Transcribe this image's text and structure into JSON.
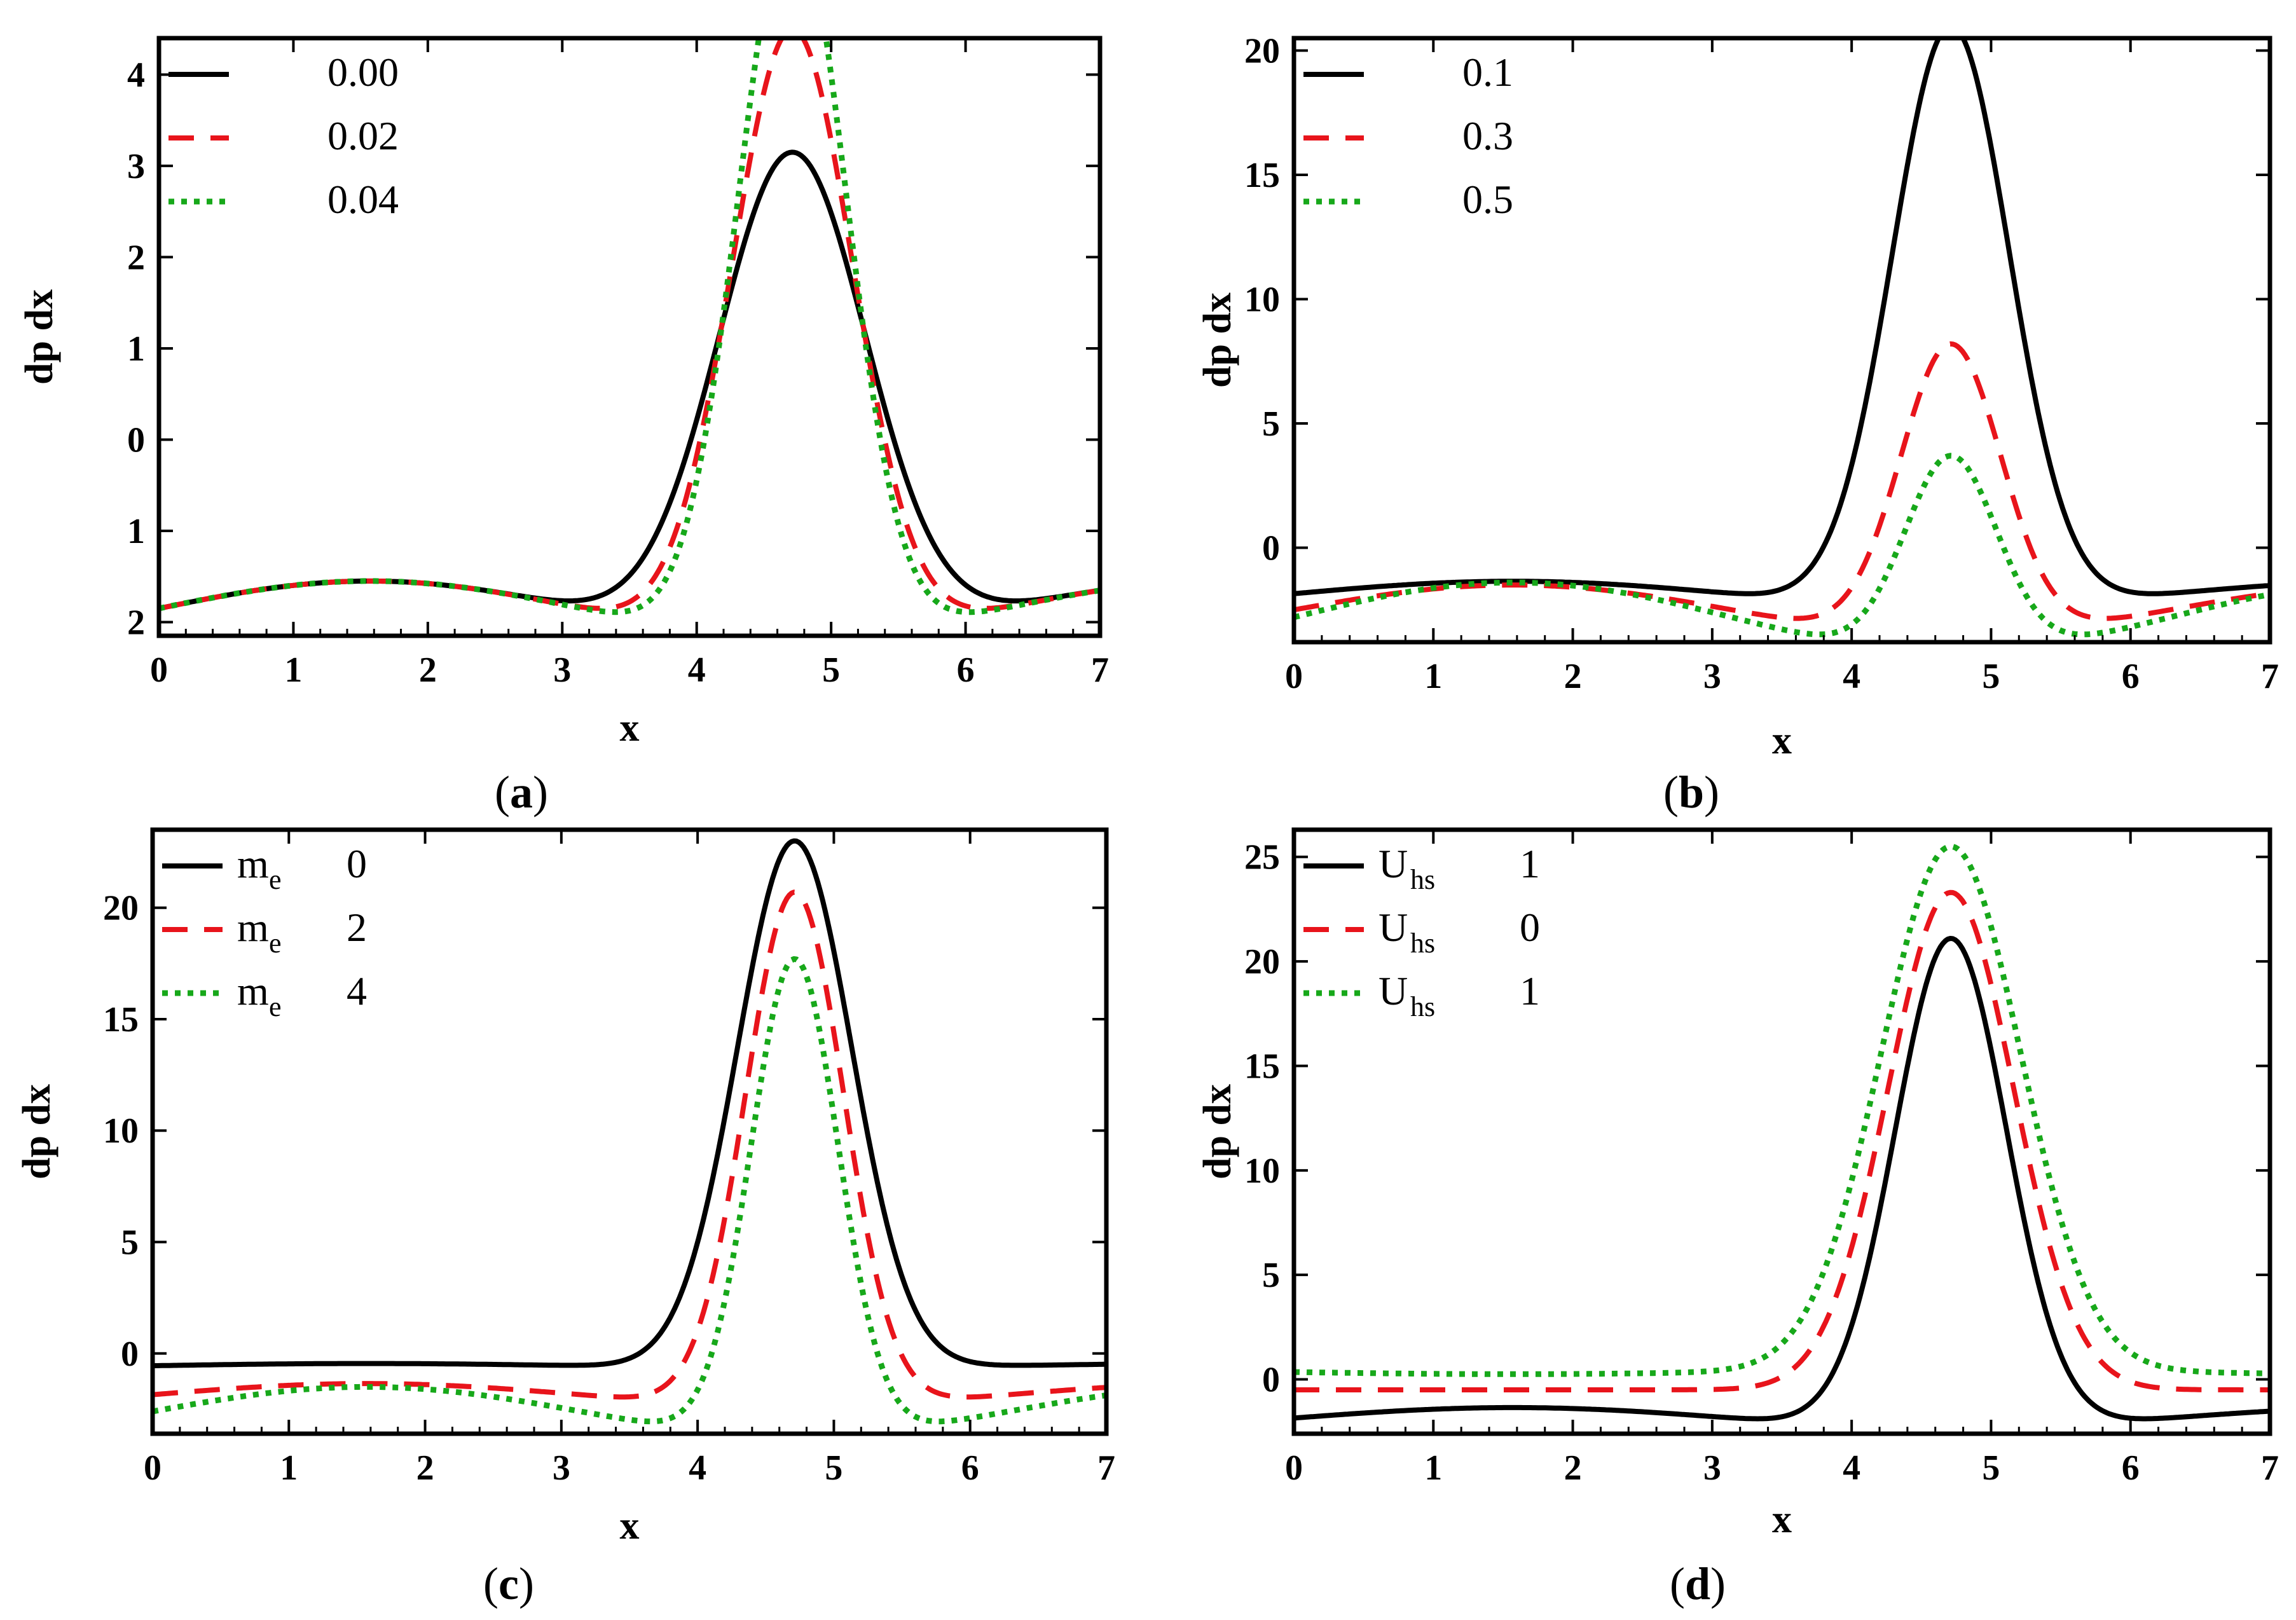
{
  "figure": {
    "panels": [
      {
        "id": "a",
        "caption_letter": "a"
      },
      {
        "id": "b",
        "caption_letter": "b"
      },
      {
        "id": "c",
        "caption_letter": "c"
      },
      {
        "id": "d",
        "caption_letter": "d"
      }
    ]
  },
  "colors": {
    "series1": "#000000",
    "series2": "#e8141b",
    "series3": "#17a81a"
  },
  "chart_data": [
    {
      "type": "line",
      "panel": "a",
      "xlabel": "x",
      "ylabel": "dp dx",
      "xlim": [
        0,
        7
      ],
      "ylim": [
        -2.15,
        4.4
      ],
      "xticks": [
        0,
        1,
        2,
        3,
        4,
        5,
        6,
        7
      ],
      "yticks": [
        -2,
        -1,
        0,
        1,
        2,
        3,
        4
      ],
      "ytick_labels": [
        "2",
        "1",
        "0",
        "1",
        "2",
        "3",
        "4"
      ],
      "legend_position": "top-left",
      "series": [
        {
          "name": "0.00",
          "legend_sym": "",
          "legend_val": "0.00",
          "style": "solid",
          "base": -1.85,
          "wamp": 0.3,
          "peak": 3.45,
          "width": 0.55
        },
        {
          "name": "0.02",
          "legend_sym": "",
          "legend_val": "0.02",
          "style": "dashed",
          "base": -1.85,
          "wamp": 0.3,
          "peak": 4.8,
          "width": 0.45
        },
        {
          "name": "0.04",
          "legend_sym": "",
          "legend_val": "0.04",
          "style": "dotted",
          "base": -1.85,
          "wamp": 0.3,
          "peak": 6.1,
          "width": 0.4
        }
      ]
    },
    {
      "type": "line",
      "panel": "b",
      "xlabel": "x",
      "ylabel": "dp dx",
      "xlim": [
        0,
        7
      ],
      "ylim": [
        -3.8,
        20.5
      ],
      "xticks": [
        0,
        1,
        2,
        3,
        4,
        5,
        6,
        7
      ],
      "yticks": [
        0,
        5,
        10,
        15,
        20
      ],
      "ytick_labels": [
        "0",
        "5",
        "10",
        "15",
        "20"
      ],
      "legend_position": "top-left",
      "series": [
        {
          "name": "0.1",
          "legend_sym": "",
          "legend_val": "0.1",
          "style": "solid",
          "base": -1.85,
          "wamp": 0.5,
          "peak": 21.5,
          "width": 0.42
        },
        {
          "name": "0.3",
          "legend_sym": "",
          "legend_val": "0.3",
          "style": "dashed",
          "base": -2.5,
          "wamp": 1.0,
          "peak": 9.2,
          "width": 0.36
        },
        {
          "name": "0.5",
          "legend_sym": "",
          "legend_val": "0.5",
          "style": "dotted",
          "base": -2.8,
          "wamp": 1.4,
          "peak": 5.1,
          "width": 0.33
        }
      ]
    },
    {
      "type": "line",
      "panel": "c",
      "xlabel": "x",
      "ylabel": "dp dx",
      "xlim": [
        0,
        7
      ],
      "ylim": [
        -3.6,
        23.5
      ],
      "xticks": [
        0,
        1,
        2,
        3,
        4,
        5,
        6,
        7
      ],
      "yticks": [
        0,
        5,
        10,
        15,
        20
      ],
      "ytick_labels": [
        "0",
        "5",
        "10",
        "15",
        "20"
      ],
      "legend_position": "top-left",
      "series": [
        {
          "name": "m_e 0",
          "legend_sym": "m",
          "legend_sub": "e",
          "legend_val": "0",
          "style": "solid",
          "base": -0.55,
          "wamp": 0.1,
          "peak": 23.1,
          "width": 0.42
        },
        {
          "name": "m_e 2",
          "legend_sym": "m",
          "legend_sub": "e",
          "legend_val": "2",
          "style": "dashed",
          "base": -1.85,
          "wamp": 0.5,
          "peak": 21.2,
          "width": 0.36
        },
        {
          "name": "m_e 4",
          "legend_sym": "m",
          "legend_sub": "e",
          "legend_val": "4",
          "style": "dotted",
          "base": -2.6,
          "wamp": 1.1,
          "peak": 18.8,
          "width": 0.32
        }
      ]
    },
    {
      "type": "line",
      "panel": "d",
      "xlabel": "x",
      "ylabel": "dp dx",
      "xlim": [
        0,
        7
      ],
      "ylim": [
        -2.6,
        26.3
      ],
      "xticks": [
        0,
        1,
        2,
        3,
        4,
        5,
        6,
        7
      ],
      "yticks": [
        0,
        5,
        10,
        15,
        20,
        25
      ],
      "ytick_labels": [
        "0",
        "5",
        "10",
        "15",
        "20",
        "25"
      ],
      "legend_position": "top-left",
      "series": [
        {
          "name": "U_hs 1",
          "legend_sym": "U",
          "legend_sub": "hs",
          "legend_val": "1",
          "style": "solid",
          "base": -1.85,
          "wamp": 0.5,
          "peak": 21.6,
          "width": 0.4
        },
        {
          "name": "U_hs 0",
          "legend_sym": "U",
          "legend_sub": "hs",
          "legend_val": "0",
          "style": "dashed",
          "base": -0.5,
          "wamp": 0.0,
          "peak": 23.3,
          "width": 0.45
        },
        {
          "name": "U_hs 1",
          "legend_sym": "U",
          "legend_sub": "hs",
          "legend_val": "1",
          "style": "dotted",
          "base": 0.35,
          "wamp": -0.1,
          "peak": 25.4,
          "width": 0.5
        }
      ]
    }
  ]
}
